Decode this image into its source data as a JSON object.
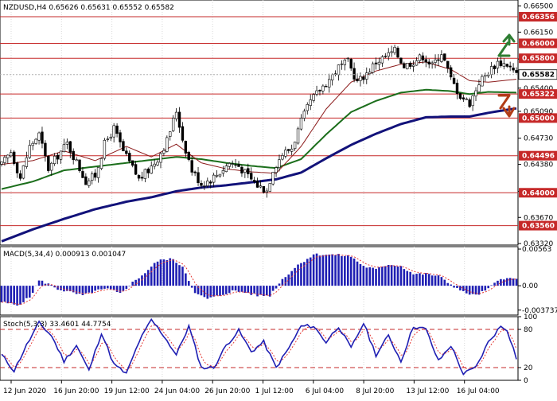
{
  "chart_data": [
    {
      "type": "candlestick",
      "symbol": "NZDUSD",
      "timeframe": "H4",
      "header_values": [
        "0.65626",
        "0.65631",
        "0.65552",
        "0.65582"
      ],
      "ylim": [
        0.633,
        0.6658
      ],
      "y_ticks": [
        "0.66500",
        "0.66150",
        "0.65790",
        "0.65400",
        "0.65090",
        "0.64730",
        "0.64380",
        "0.64020",
        "0.63670",
        "0.63320"
      ],
      "current_price": "0.65582",
      "levels": [
        {
          "value": 0.66356,
          "label": "0.66356"
        },
        {
          "value": 0.66,
          "label": "0.66000"
        },
        {
          "value": 0.658,
          "label": "0.65800"
        },
        {
          "value": 0.65322,
          "label": "0.65322"
        },
        {
          "value": 0.65,
          "label": "0.65000"
        },
        {
          "value": 0.64496,
          "label": "0.64496"
        },
        {
          "value": 0.64,
          "label": "0.64000"
        },
        {
          "value": 0.6356,
          "label": "0.63560"
        }
      ],
      "arrows": [
        {
          "direction": "up",
          "color": "#2e7d32"
        },
        {
          "direction": "down",
          "color": "#b23c17"
        }
      ],
      "x_labels": [
        "12 Jun 2020",
        "16 Jun 20:00",
        "19 Jun 12:00",
        "24 Jun 04:00",
        "26 Jun 20:00",
        "1 Jul 12:00",
        "6 Jul 04:00",
        "8 Jul 20:00",
        "13 Jul 12:00",
        "16 Jul 04:00"
      ],
      "close_anchors": [
        [
          0,
          0.6437
        ],
        [
          3,
          0.6455
        ],
        [
          6,
          0.642
        ],
        [
          9,
          0.6462
        ],
        [
          12,
          0.6478
        ],
        [
          15,
          0.6432
        ],
        [
          18,
          0.645
        ],
        [
          21,
          0.6466
        ],
        [
          24,
          0.6441
        ],
        [
          27,
          0.6415
        ],
        [
          30,
          0.6423
        ],
        [
          33,
          0.6465
        ],
        [
          36,
          0.6486
        ],
        [
          39,
          0.6455
        ],
        [
          42,
          0.6433
        ],
        [
          44,
          0.6418
        ],
        [
          47,
          0.643
        ],
        [
          50,
          0.6446
        ],
        [
          53,
          0.647
        ],
        [
          56,
          0.651
        ],
        [
          58,
          0.6472
        ],
        [
          61,
          0.643
        ],
        [
          64,
          0.6412
        ],
        [
          67,
          0.6418
        ],
        [
          70,
          0.6428
        ],
        [
          73,
          0.644
        ],
        [
          76,
          0.6436
        ],
        [
          79,
          0.6422
        ],
        [
          82,
          0.641
        ],
        [
          85,
          0.6403
        ],
        [
          87,
          0.6432
        ],
        [
          90,
          0.6452
        ],
        [
          93,
          0.646
        ],
        [
          96,
          0.6495
        ],
        [
          99,
          0.6522
        ],
        [
          102,
          0.6538
        ],
        [
          105,
          0.6552
        ],
        [
          108,
          0.6568
        ],
        [
          111,
          0.6575
        ],
        [
          114,
          0.6548
        ],
        [
          117,
          0.656
        ],
        [
          120,
          0.6575
        ],
        [
          123,
          0.6582
        ],
        [
          126,
          0.659
        ],
        [
          129,
          0.657
        ],
        [
          132,
          0.6576
        ],
        [
          135,
          0.6583
        ],
        [
          138,
          0.657
        ],
        [
          141,
          0.6588
        ],
        [
          144,
          0.6552
        ],
        [
          147,
          0.653
        ],
        [
          150,
          0.652
        ],
        [
          153,
          0.6548
        ],
        [
          156,
          0.6562
        ],
        [
          159,
          0.6575
        ],
        [
          162,
          0.6572
        ],
        [
          165,
          0.6558
        ]
      ],
      "ma_fast_anchors": [
        [
          0,
          0.6438
        ],
        [
          10,
          0.6443
        ],
        [
          20,
          0.6456
        ],
        [
          30,
          0.6443
        ],
        [
          40,
          0.6462
        ],
        [
          48,
          0.6448
        ],
        [
          56,
          0.6465
        ],
        [
          64,
          0.644
        ],
        [
          72,
          0.6432
        ],
        [
          80,
          0.6428
        ],
        [
          88,
          0.6426
        ],
        [
          96,
          0.6462
        ],
        [
          104,
          0.6512
        ],
        [
          112,
          0.6548
        ],
        [
          120,
          0.6563
        ],
        [
          128,
          0.6572
        ],
        [
          136,
          0.6575
        ],
        [
          144,
          0.6565
        ],
        [
          150,
          0.655
        ],
        [
          156,
          0.6548
        ],
        [
          165,
          0.6552
        ]
      ],
      "ma_mid_anchors": [
        [
          0,
          0.6405
        ],
        [
          10,
          0.6415
        ],
        [
          20,
          0.643
        ],
        [
          30,
          0.6435
        ],
        [
          40,
          0.644
        ],
        [
          48,
          0.6444
        ],
        [
          56,
          0.6448
        ],
        [
          64,
          0.6445
        ],
        [
          72,
          0.644
        ],
        [
          80,
          0.6436
        ],
        [
          88,
          0.6433
        ],
        [
          96,
          0.6445
        ],
        [
          104,
          0.6478
        ],
        [
          112,
          0.6508
        ],
        [
          120,
          0.6523
        ],
        [
          128,
          0.6534
        ],
        [
          136,
          0.6538
        ],
        [
          144,
          0.6536
        ],
        [
          150,
          0.6532
        ],
        [
          156,
          0.6535
        ],
        [
          165,
          0.6534
        ]
      ],
      "ma_slow_anchors": [
        [
          0,
          0.6335
        ],
        [
          10,
          0.6351
        ],
        [
          20,
          0.6365
        ],
        [
          30,
          0.6378
        ],
        [
          40,
          0.6388
        ],
        [
          48,
          0.6394
        ],
        [
          56,
          0.6402
        ],
        [
          64,
          0.6407
        ],
        [
          72,
          0.641
        ],
        [
          80,
          0.6414
        ],
        [
          88,
          0.6418
        ],
        [
          96,
          0.6427
        ],
        [
          104,
          0.6446
        ],
        [
          112,
          0.6464
        ],
        [
          120,
          0.6479
        ],
        [
          128,
          0.6492
        ],
        [
          136,
          0.6501
        ],
        [
          144,
          0.6502
        ],
        [
          150,
          0.6502
        ],
        [
          156,
          0.6507
        ],
        [
          165,
          0.6513
        ]
      ]
    },
    {
      "type": "histogram",
      "label": "MACD(5,34,4)",
      "values_text": [
        "0.000913",
        "0.001047"
      ],
      "ylim": [
        -0.0045,
        0.006
      ],
      "y_ticks": [
        "0.00563",
        "0.00",
        "-0.003737"
      ],
      "bar_anchors": [
        [
          0,
          -0.0025
        ],
        [
          5,
          -0.003
        ],
        [
          9,
          -0.0018
        ],
        [
          12,
          0.0008
        ],
        [
          15,
          0.0003
        ],
        [
          18,
          -0.0005
        ],
        [
          22,
          -0.001
        ],
        [
          26,
          -0.0015
        ],
        [
          30,
          -0.0008
        ],
        [
          34,
          -0.0005
        ],
        [
          38,
          -0.0012
        ],
        [
          42,
          0.0005
        ],
        [
          46,
          0.002
        ],
        [
          50,
          0.0038
        ],
        [
          54,
          0.0042
        ],
        [
          58,
          0.003
        ],
        [
          62,
          -0.0012
        ],
        [
          66,
          -0.002
        ],
        [
          70,
          -0.0015
        ],
        [
          74,
          -0.0008
        ],
        [
          78,
          -0.001
        ],
        [
          82,
          -0.0015
        ],
        [
          86,
          -0.0015
        ],
        [
          90,
          0.001
        ],
        [
          95,
          0.0032
        ],
        [
          100,
          0.0048
        ],
        [
          104,
          0.0048
        ],
        [
          108,
          0.0047
        ],
        [
          112,
          0.0045
        ],
        [
          116,
          0.003
        ],
        [
          120,
          0.0025
        ],
        [
          124,
          0.0033
        ],
        [
          128,
          0.003
        ],
        [
          132,
          0.0018
        ],
        [
          136,
          0.0018
        ],
        [
          140,
          0.0015
        ],
        [
          144,
          0.0002
        ],
        [
          148,
          -0.001
        ],
        [
          152,
          -0.0015
        ],
        [
          156,
          -0.0005
        ],
        [
          160,
          0.0012
        ],
        [
          165,
          0.001
        ]
      ]
    },
    {
      "type": "line",
      "label": "Stoch(5,3,3)",
      "values_text": [
        "33.4601",
        "44.7754"
      ],
      "ylim": [
        0,
        100
      ],
      "y_ticks": [
        "100",
        "80",
        "20",
        "0"
      ],
      "levels": [
        80,
        20
      ],
      "k_anchors": [
        [
          0,
          40
        ],
        [
          4,
          15
        ],
        [
          8,
          55
        ],
        [
          12,
          90
        ],
        [
          16,
          70
        ],
        [
          20,
          30
        ],
        [
          24,
          55
        ],
        [
          28,
          15
        ],
        [
          32,
          75
        ],
        [
          36,
          25
        ],
        [
          40,
          10
        ],
        [
          44,
          60
        ],
        [
          48,
          95
        ],
        [
          52,
          70
        ],
        [
          56,
          40
        ],
        [
          60,
          85
        ],
        [
          64,
          20
        ],
        [
          68,
          20
        ],
        [
          72,
          55
        ],
        [
          76,
          78
        ],
        [
          80,
          45
        ],
        [
          84,
          60
        ],
        [
          88,
          20
        ],
        [
          92,
          50
        ],
        [
          96,
          85
        ],
        [
          100,
          85
        ],
        [
          104,
          60
        ],
        [
          108,
          85
        ],
        [
          112,
          50
        ],
        [
          116,
          90
        ],
        [
          120,
          40
        ],
        [
          124,
          70
        ],
        [
          128,
          30
        ],
        [
          132,
          85
        ],
        [
          136,
          80
        ],
        [
          140,
          30
        ],
        [
          144,
          55
        ],
        [
          148,
          10
        ],
        [
          152,
          20
        ],
        [
          156,
          60
        ],
        [
          160,
          85
        ],
        [
          162,
          80
        ],
        [
          165,
          35
        ]
      ]
    }
  ]
}
